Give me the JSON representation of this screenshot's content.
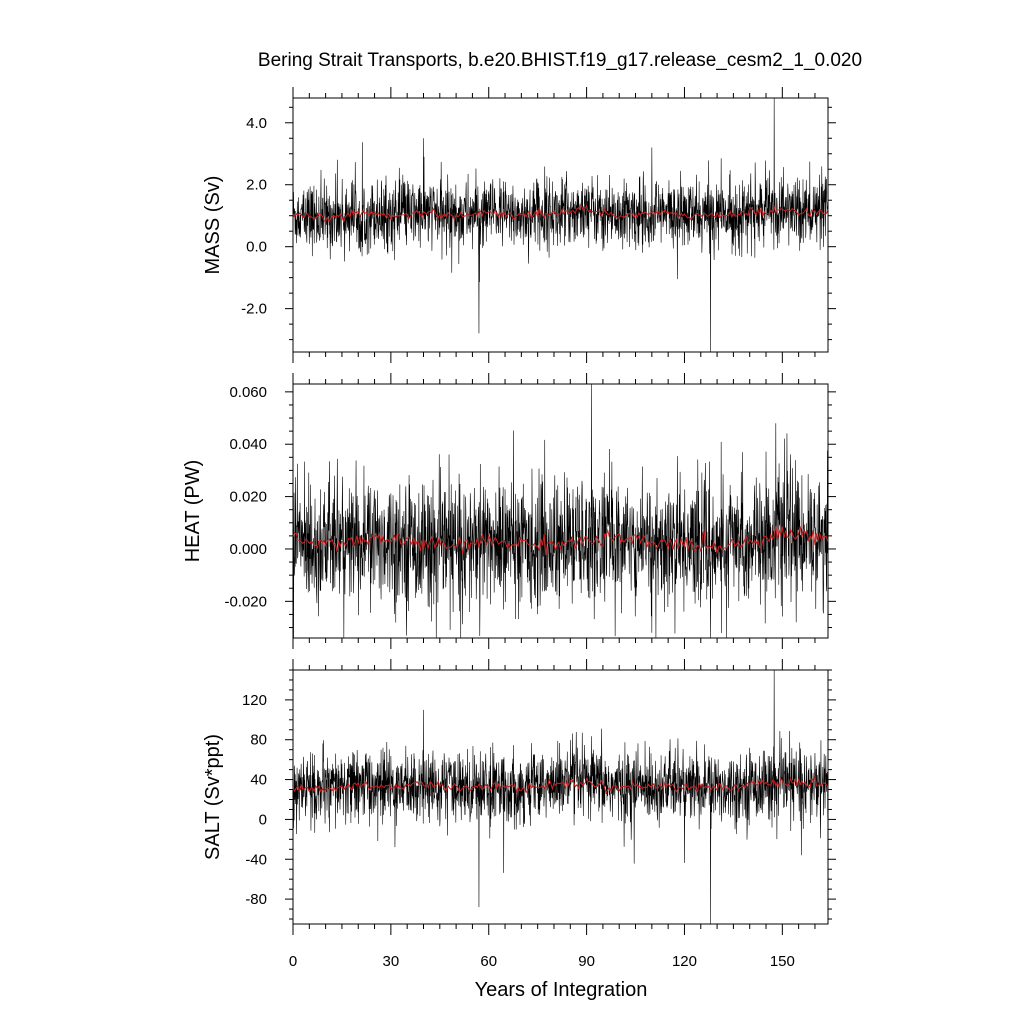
{
  "title": "Bering Strait Transports, b.e20.BHIST.f19_g17.release_cesm2_1_0.020",
  "colors": {
    "raw": "#000000",
    "smoothed": "#cc2020",
    "background": "#ffffff"
  },
  "chart_data": [
    {
      "type": "line",
      "ylabel": "MASS (Sv)",
      "xlim": [
        0,
        164
      ],
      "ylim": [
        -3.4,
        4.8
      ],
      "yticks": [
        4.0,
        2.0,
        0.0,
        -2.0
      ],
      "ytick_labels": [
        "4.0",
        "2.0",
        "0.0",
        "-2.0"
      ],
      "grid": false,
      "series": [
        {
          "kind": "monthly",
          "mean": 1.0,
          "noise_sd": 0.55,
          "notable_points": [
            [
              57,
              -2.8
            ],
            [
              128,
              -3.4
            ],
            [
              147.5,
              4.8
            ],
            [
              40,
              3.5
            ],
            [
              110,
              3.2
            ]
          ]
        },
        {
          "kind": "annual-mean",
          "x": [
            0,
            10,
            20,
            30,
            40,
            50,
            60,
            70,
            80,
            90,
            100,
            110,
            120,
            130,
            140,
            150,
            160,
            164
          ],
          "y": [
            1.0,
            0.9,
            1.1,
            1.0,
            1.1,
            1.0,
            1.1,
            1.0,
            1.1,
            1.2,
            1.0,
            1.1,
            1.0,
            1.0,
            1.1,
            1.2,
            1.1,
            1.1
          ]
        }
      ]
    },
    {
      "type": "line",
      "ylabel": "HEAT (PW)",
      "xlim": [
        0,
        164
      ],
      "ylim": [
        -0.034,
        0.063
      ],
      "yticks": [
        0.06,
        0.04,
        0.02,
        0.0,
        -0.02
      ],
      "ytick_labels": [
        "0.060",
        "0.040",
        "0.020",
        "0.000",
        "-0.020"
      ],
      "grid": false,
      "series": [
        {
          "kind": "monthly",
          "mean": 0.003,
          "noise_sd": 0.012,
          "notable_points": [
            [
              91.5,
              0.063
            ],
            [
              110,
              -0.032
            ],
            [
              128,
              -0.034
            ],
            [
              148,
              0.048
            ]
          ]
        },
        {
          "kind": "annual-mean",
          "x": [
            0,
            10,
            20,
            30,
            40,
            50,
            60,
            70,
            80,
            90,
            100,
            110,
            120,
            130,
            140,
            150,
            160,
            164
          ],
          "y": [
            0.004,
            0.002,
            0.003,
            0.004,
            0.002,
            0.001,
            0.003,
            0.002,
            0.002,
            0.003,
            0.004,
            0.002,
            0.002,
            0.001,
            0.003,
            0.006,
            0.005,
            0.004
          ]
        }
      ]
    },
    {
      "type": "line",
      "ylabel": "SALT (Sv*ppt)",
      "xlim": [
        0,
        164
      ],
      "ylim": [
        -105,
        150
      ],
      "yticks": [
        120,
        80,
        40,
        0,
        -40,
        -80
      ],
      "ytick_labels": [
        "120",
        "80",
        "40",
        "0",
        "-40",
        "-80"
      ],
      "xticks": [
        0,
        30,
        60,
        90,
        120,
        150
      ],
      "xtick_labels": [
        "0",
        "30",
        "60",
        "90",
        "120",
        "150"
      ],
      "xlabel": "Years of Integration",
      "grid": false,
      "series": [
        {
          "kind": "monthly",
          "mean": 33,
          "noise_sd": 18,
          "notable_points": [
            [
              57,
              -88
            ],
            [
              128,
              -105
            ],
            [
              147.5,
              150
            ],
            [
              40,
              110
            ]
          ]
        },
        {
          "kind": "annual-mean",
          "x": [
            0,
            10,
            20,
            30,
            40,
            50,
            60,
            70,
            80,
            90,
            100,
            110,
            120,
            130,
            140,
            150,
            160,
            164
          ],
          "y": [
            32,
            30,
            34,
            33,
            35,
            32,
            34,
            31,
            35,
            37,
            32,
            34,
            33,
            32,
            34,
            37,
            35,
            34
          ]
        }
      ]
    }
  ]
}
